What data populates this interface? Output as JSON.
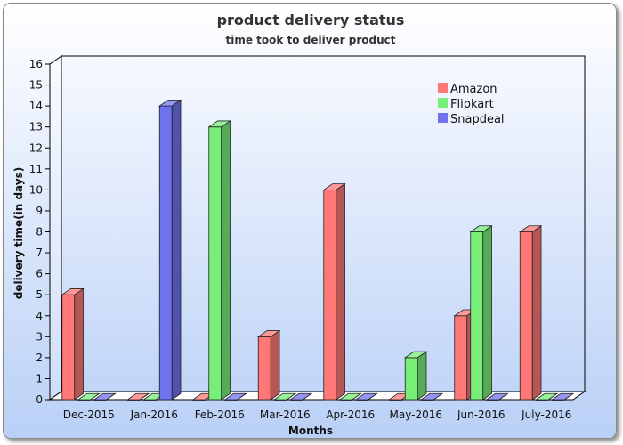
{
  "chart_data": {
    "type": "bar",
    "title": "product delivery status",
    "subtitle": "time took to deliver product",
    "xlabel": "Months",
    "ylabel": "delivery time(in days)",
    "categories": [
      "Dec-2015",
      "Jan-2016",
      "Feb-2016",
      "Mar-2016",
      "Apr-2016",
      "May-2016",
      "Jun-2016",
      "July-2016"
    ],
    "series": [
      {
        "name": "Amazon",
        "color": "#ff7777",
        "values": [
          5,
          0,
          0,
          3,
          10,
          0,
          4,
          8
        ]
      },
      {
        "name": "Flipkart",
        "color": "#77ee77",
        "values": [
          0,
          0,
          13,
          0,
          0,
          2,
          8,
          0
        ]
      },
      {
        "name": "Snapdeal",
        "color": "#6f72ee",
        "values": [
          0,
          14,
          0,
          0,
          0,
          0,
          0,
          0
        ]
      }
    ],
    "yticks": [
      "0",
      "1",
      "2",
      "3",
      "4",
      "5",
      "6",
      "7",
      "8",
      "9",
      "10",
      "11",
      "12",
      "13",
      "14",
      "15",
      "16"
    ],
    "ylim": [
      0,
      16
    ],
    "grid": false,
    "legend_position": "top-right"
  }
}
